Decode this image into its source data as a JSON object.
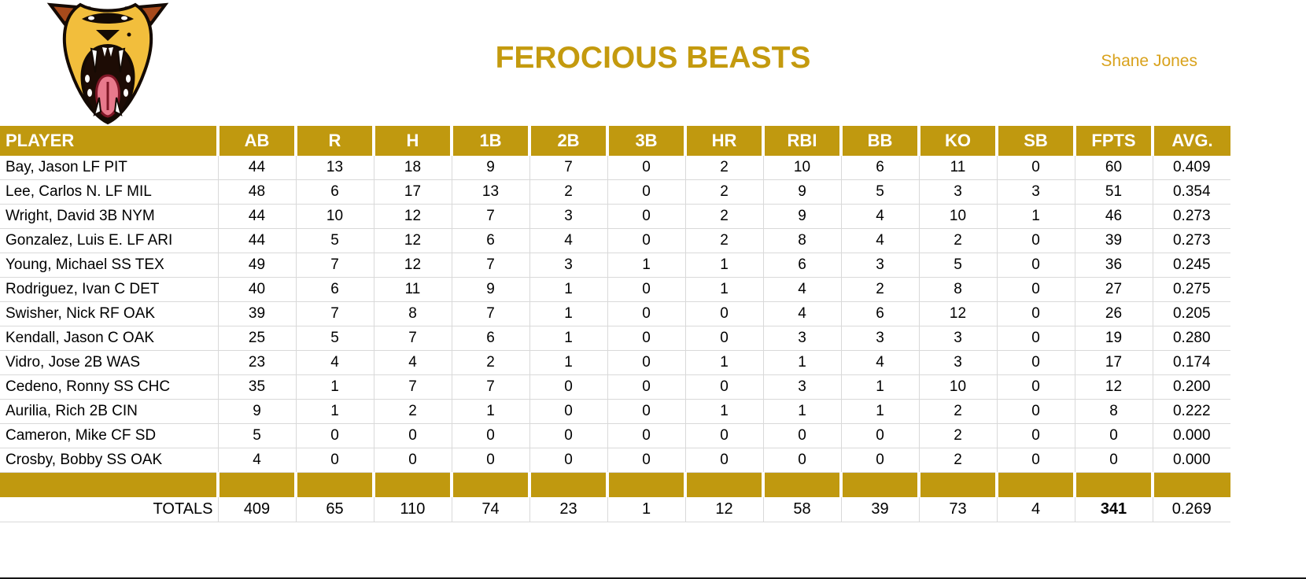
{
  "header": {
    "title": "FEROCIOUS BEASTS",
    "owner": "Shane Jones",
    "logo_icon": "roaring-beast-logo"
  },
  "colors": {
    "gold_header": "#C0990F",
    "title_gold": "#C49A0E",
    "owner_gold": "#D9A21C",
    "gridline": "#D9D9D9",
    "header_text": "#FFFFFF",
    "body_text": "#000000"
  },
  "table": {
    "columns": [
      "PLAYER",
      "AB",
      "R",
      "H",
      "1B",
      "2B",
      "3B",
      "HR",
      "RBI",
      "BB",
      "KO",
      "SB",
      "FPTS",
      "AVG."
    ],
    "rows": [
      {
        "player": "Bay, Jason LF PIT",
        "stats": [
          44,
          13,
          18,
          9,
          7,
          0,
          2,
          10,
          6,
          11,
          0,
          60,
          "0.409"
        ]
      },
      {
        "player": "Lee, Carlos N. LF MIL",
        "stats": [
          48,
          6,
          17,
          13,
          2,
          0,
          2,
          9,
          5,
          3,
          3,
          51,
          "0.354"
        ]
      },
      {
        "player": "Wright, David 3B NYM",
        "stats": [
          44,
          10,
          12,
          7,
          3,
          0,
          2,
          9,
          4,
          10,
          1,
          46,
          "0.273"
        ]
      },
      {
        "player": "Gonzalez, Luis E. LF ARI",
        "stats": [
          44,
          5,
          12,
          6,
          4,
          0,
          2,
          8,
          4,
          2,
          0,
          39,
          "0.273"
        ]
      },
      {
        "player": "Young, Michael SS TEX",
        "stats": [
          49,
          7,
          12,
          7,
          3,
          1,
          1,
          6,
          3,
          5,
          0,
          36,
          "0.245"
        ]
      },
      {
        "player": "Rodriguez, Ivan C DET",
        "stats": [
          40,
          6,
          11,
          9,
          1,
          0,
          1,
          4,
          2,
          8,
          0,
          27,
          "0.275"
        ]
      },
      {
        "player": "Swisher, Nick RF OAK",
        "stats": [
          39,
          7,
          8,
          7,
          1,
          0,
          0,
          4,
          6,
          12,
          0,
          26,
          "0.205"
        ]
      },
      {
        "player": "Kendall, Jason C OAK",
        "stats": [
          25,
          5,
          7,
          6,
          1,
          0,
          0,
          3,
          3,
          3,
          0,
          19,
          "0.280"
        ]
      },
      {
        "player": "Vidro, Jose 2B WAS",
        "stats": [
          23,
          4,
          4,
          2,
          1,
          0,
          1,
          1,
          4,
          3,
          0,
          17,
          "0.174"
        ]
      },
      {
        "player": "Cedeno, Ronny SS CHC",
        "stats": [
          35,
          1,
          7,
          7,
          0,
          0,
          0,
          3,
          1,
          10,
          0,
          12,
          "0.200"
        ]
      },
      {
        "player": "Aurilia, Rich 2B CIN",
        "stats": [
          9,
          1,
          2,
          1,
          0,
          0,
          1,
          1,
          1,
          2,
          0,
          8,
          "0.222"
        ]
      },
      {
        "player": "Cameron, Mike CF SD",
        "stats": [
          5,
          0,
          0,
          0,
          0,
          0,
          0,
          0,
          0,
          2,
          0,
          0,
          "0.000"
        ]
      },
      {
        "player": "Crosby, Bobby SS OAK",
        "stats": [
          4,
          0,
          0,
          0,
          0,
          0,
          0,
          0,
          0,
          2,
          0,
          0,
          "0.000"
        ]
      }
    ],
    "totals": {
      "label": "TOTALS",
      "stats": [
        409,
        65,
        110,
        74,
        23,
        1,
        12,
        58,
        39,
        73,
        4,
        341,
        "0.269"
      ],
      "bold_stat_index": 11
    }
  }
}
